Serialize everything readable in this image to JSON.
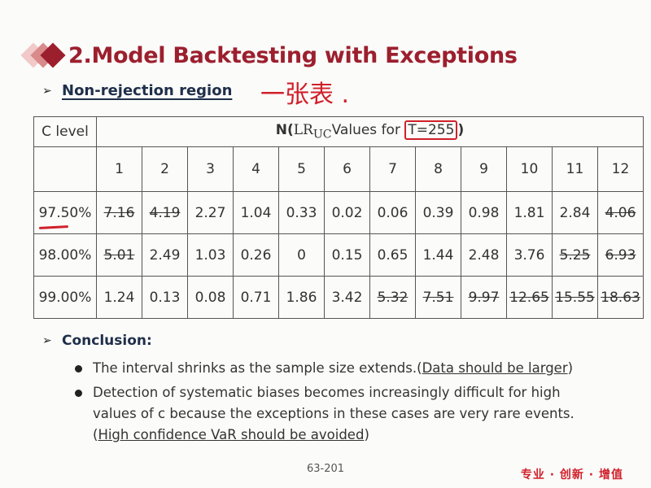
{
  "title": "2.Model Backtesting with Exceptions",
  "subhead": "Non-rejection region",
  "handwritten_note": "一张表 .",
  "table": {
    "clevel_header": "C level",
    "n_header": {
      "prefix": "N(",
      "lr": "LR",
      "sub": "UC",
      "mid": "Values for ",
      "boxed": "T=255",
      "suffix": ")"
    },
    "columns": [
      "1",
      "2",
      "3",
      "4",
      "5",
      "6",
      "7",
      "8",
      "9",
      "10",
      "11",
      "12"
    ],
    "rows": [
      {
        "label": "97.50%",
        "values": [
          "7.16",
          "4.19",
          "2.27",
          "1.04",
          "0.33",
          "0.02",
          "0.06",
          "0.39",
          "0.98",
          "1.81",
          "2.84",
          "4.06"
        ],
        "struck": [
          true,
          true,
          false,
          false,
          false,
          false,
          false,
          false,
          false,
          false,
          false,
          true
        ]
      },
      {
        "label": "98.00%",
        "values": [
          "5.01",
          "2.49",
          "1.03",
          "0.26",
          "0",
          "0.15",
          "0.65",
          "1.44",
          "2.48",
          "3.76",
          "5.25",
          "6.93"
        ],
        "struck": [
          true,
          false,
          false,
          false,
          false,
          false,
          false,
          false,
          false,
          false,
          true,
          true
        ]
      },
      {
        "label": "99.00%",
        "values": [
          "1.24",
          "0.13",
          "0.08",
          "0.71",
          "1.86",
          "3.42",
          "5.32",
          "7.51",
          "9.97",
          "12.65",
          "15.55",
          "18.63"
        ],
        "struck": [
          false,
          false,
          false,
          false,
          false,
          false,
          true,
          true,
          true,
          true,
          true,
          true
        ]
      }
    ]
  },
  "conclusion": {
    "heading": "Conclusion:",
    "bullets": [
      {
        "text": "The interval shrinks as the sample size extends.",
        "paren_text": "Data should be larger"
      },
      {
        "text": "Detection of systematic biases becomes increasingly difficult for high values of c because the exceptions in these cases are very rare events.",
        "paren_text": "High confidence VaR should be avoided"
      }
    ]
  },
  "page_number": "63-201",
  "brand": "专业 · 创新 · 增值",
  "colors": {
    "accent": "#9c1f2e",
    "ink": "#1f2f4a",
    "annotation_red": "#d0202a"
  }
}
